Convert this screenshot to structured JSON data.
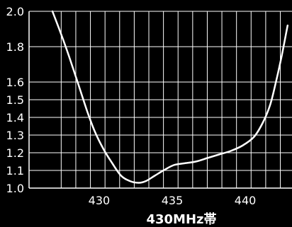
{
  "chart_data": {
    "type": "line",
    "title": "",
    "xlabel": "430MHz帯",
    "ylabel": "",
    "xlim": [
      425.2,
      443.2
    ],
    "ylim": [
      1.0,
      2.0
    ],
    "grid": true,
    "colors": {
      "background": "#000000",
      "grid": "#ffffff",
      "line": "#ffffff",
      "text": "#ffffff"
    },
    "x_ticks": [
      430,
      435,
      440
    ],
    "x_tick_labels": [
      "430",
      "435",
      "440"
    ],
    "x_grid": [
      427.4,
      428.4,
      429.4,
      430.4,
      431.4,
      432.4,
      433.4,
      434.4,
      435.4,
      436.4,
      437.4,
      438.4,
      439.4,
      440.4,
      441.4,
      442.4
    ],
    "y_ticks": [
      1.0,
      1.1,
      1.2,
      1.3,
      1.4,
      1.5,
      1.6,
      1.8,
      2.0
    ],
    "y_tick_labels": [
      "1.0",
      "1.1",
      "1.2",
      "1.3",
      "1.4",
      "1.5",
      "1.6",
      "1.8",
      "2.0"
    ],
    "y_grid": [
      1.1,
      1.2,
      1.3,
      1.4,
      1.5,
      1.6,
      1.8,
      2.0
    ],
    "series": [
      {
        "x": [
          426.8,
          427.4,
          428.0,
          428.6,
          429.2,
          429.7,
          430.3,
          430.9,
          431.5,
          432.1,
          432.7,
          433.2,
          433.8,
          434.4,
          435.1,
          435.8,
          436.6,
          437.4,
          438.2,
          439.0,
          439.8,
          440.6,
          441.2,
          441.7,
          442.1,
          442.5,
          442.9
        ],
        "y": [
          2.0,
          1.87,
          1.73,
          1.58,
          1.43,
          1.32,
          1.22,
          1.14,
          1.07,
          1.04,
          1.03,
          1.04,
          1.07,
          1.1,
          1.13,
          1.14,
          1.15,
          1.17,
          1.19,
          1.21,
          1.24,
          1.29,
          1.37,
          1.47,
          1.6,
          1.75,
          1.92
        ]
      }
    ]
  }
}
